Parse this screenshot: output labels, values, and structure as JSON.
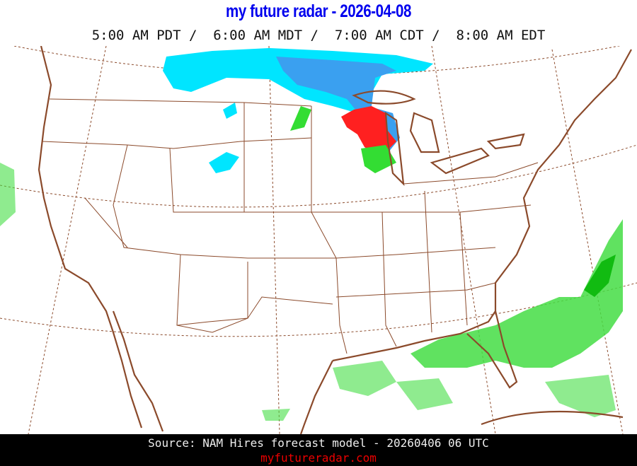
{
  "header": {
    "title": "my future radar - 2026-04-08",
    "times": "5:00 AM PDT /  6:00 AM MDT /  7:00 AM CDT /  8:00 AM EDT"
  },
  "footer": {
    "source": "Source: NAM Hires forecast model - 20260406 06 UTC",
    "site": "myfutureradar.com"
  },
  "colors": {
    "title": "#0000ee",
    "boundaries": "#8b4a2b",
    "snow_light": "#00e5ff",
    "snow_heavy": "#3aa0f0",
    "rain_light": "#33dd33",
    "rain_heavy": "#ff2020"
  }
}
